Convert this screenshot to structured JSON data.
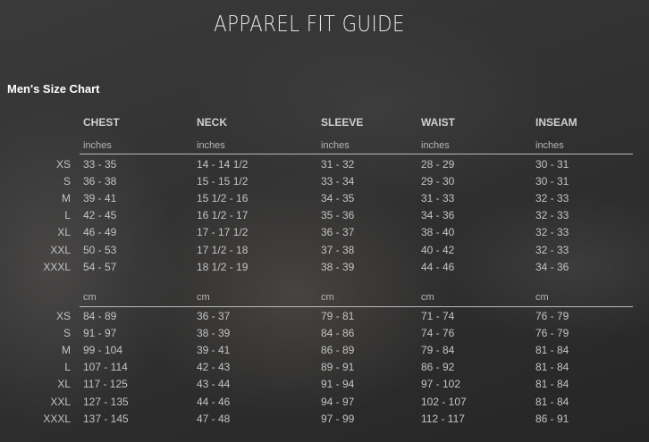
{
  "title": "APPAREL FIT GUIDE",
  "subtitle": "Men's Size Chart",
  "columns": [
    "CHEST",
    "NECK",
    "SLEEVE",
    "WAIST",
    "INSEAM"
  ],
  "sizes": [
    "XS",
    "S",
    "M",
    "L",
    "XL",
    "XXL",
    "XXXL"
  ],
  "inches": {
    "unit": "inches",
    "rows": [
      [
        "33 - 35",
        "14 - 14 1/2",
        "31 - 32",
        "28 - 29",
        "30 - 31"
      ],
      [
        "36 - 38",
        "15 - 15 1/2",
        "33 - 34",
        "29 - 30",
        "30 - 31"
      ],
      [
        "39 - 41",
        "15 1/2 - 16",
        "34 - 35",
        "31 - 33",
        "32 - 33"
      ],
      [
        "42 - 45",
        "16 1/2 - 17",
        "35 - 36",
        "34 - 36",
        "32 - 33"
      ],
      [
        "46 - 49",
        "17 - 17 1/2",
        "36 - 37",
        "38 - 40",
        "32 - 33"
      ],
      [
        "50 - 53",
        "17 1/2 - 18",
        "37 - 38",
        "40 - 42",
        "32 - 33"
      ],
      [
        "54 - 57",
        "18 1/2 - 19",
        "38 - 39",
        "44 - 46",
        "34 - 36"
      ]
    ]
  },
  "cm": {
    "unit": "cm",
    "rows": [
      [
        "84 - 89",
        "36 - 37",
        "79 - 81",
        "71 - 74",
        "76 - 79"
      ],
      [
        "91 - 97",
        "38 - 39",
        "84 - 86",
        "74 - 76",
        "76 - 79"
      ],
      [
        "99 - 104",
        "39 - 41",
        "86 - 89",
        "79 - 84",
        "81 - 84"
      ],
      [
        "107 - 114",
        "42 - 43",
        "89 - 91",
        "86 - 92",
        "81 - 84"
      ],
      [
        "117 - 125",
        "43 - 44",
        "91 - 94",
        "97 - 102",
        "81 - 84"
      ],
      [
        "127 - 135",
        "44 - 46",
        "94 - 97",
        "102 - 107",
        "81 - 84"
      ],
      [
        "137 - 145",
        "47 - 48",
        "97 - 99",
        "112 - 117",
        "86 - 91"
      ]
    ]
  }
}
